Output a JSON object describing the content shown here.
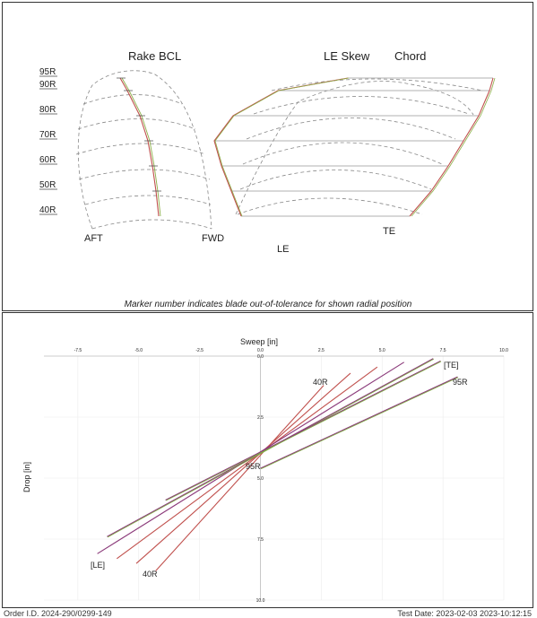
{
  "top_panel": {
    "titles": {
      "rake": "Rake BCL",
      "skew": "LE Skew",
      "chord": "Chord"
    },
    "radial_labels": [
      "95R",
      "90R",
      "80R",
      "70R",
      "60R",
      "50R",
      "40R"
    ],
    "edge_labels": {
      "aft": "AFT",
      "fwd": "FWD",
      "le": "LE",
      "te": "TE"
    },
    "note": "Marker number indicates blade out-of-tolerance for shown radial position"
  },
  "bottom_panel": {
    "x_axis_title": "Sweep [in]",
    "y_axis_title": "Drop [in]",
    "x_ticks": [
      "-7.5",
      "-5.0",
      "-2.5",
      "0.0",
      "2.5",
      "5.0",
      "7.5",
      "10.0"
    ],
    "y_ticks": [
      "0.0",
      "2.5",
      "5.0",
      "7.5",
      "10.0"
    ],
    "annotations": {
      "r40_top": "40R",
      "te": "[TE]",
      "r95_right": "95R",
      "r95_center": "95R",
      "le": "[LE]",
      "r40_bottom": "40R"
    }
  },
  "chart_data": {
    "type": "line",
    "x_label": "Sweep [in]",
    "y_label": "Drop [in]",
    "xlim": [
      -10.0,
      10.0
    ],
    "ylim": [
      0.0,
      10.0
    ],
    "y_inverted": true,
    "grid": true,
    "series": [
      {
        "points": [
          [
            -4.3,
            8.8
          ],
          [
            2.6,
            1.2
          ]
        ]
      },
      {
        "points": [
          [
            -5.1,
            8.5
          ],
          [
            3.7,
            0.7
          ]
        ]
      },
      {
        "points": [
          [
            -5.9,
            8.3
          ],
          [
            4.8,
            0.45
          ]
        ]
      },
      {
        "points": [
          [
            -6.7,
            8.1
          ],
          [
            5.9,
            0.25
          ]
        ]
      },
      {
        "points": [
          [
            -6.3,
            7.4
          ],
          [
            7.1,
            0.1
          ]
        ]
      },
      {
        "points": [
          [
            -3.9,
            5.9
          ],
          [
            7.4,
            0.2
          ]
        ]
      },
      {
        "points": [
          [
            0.0,
            4.6
          ],
          [
            8.1,
            0.85
          ]
        ]
      }
    ]
  },
  "footer": {
    "left": "Order I.D. 2024-290/0299-149",
    "right": "Test Date: 2023-02-03 2023-10:12:15"
  }
}
